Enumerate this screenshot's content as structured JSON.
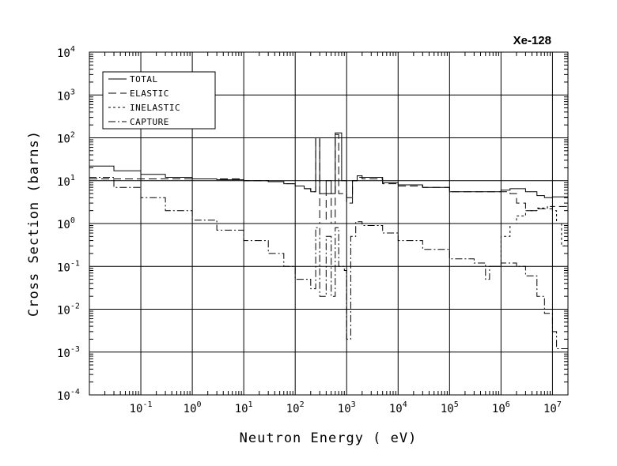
{
  "chart_data": {
    "type": "line",
    "title": "Xe-128",
    "xlabel": "Neutron Energy ( eV)",
    "ylabel": "Cross Section (barns)",
    "x_scale": "log",
    "y_scale": "log",
    "xlim": [
      0.01,
      20000000
    ],
    "ylim": [
      0.0001,
      10000
    ],
    "grid": true,
    "legend_position": "top-left",
    "x_tick_labels": [
      {
        "value": 0.1,
        "base": "10",
        "exp": "-1"
      },
      {
        "value": 1,
        "base": "10",
        "exp": "0"
      },
      {
        "value": 10,
        "base": "10",
        "exp": "1"
      },
      {
        "value": 100,
        "base": "10",
        "exp": "2"
      },
      {
        "value": 1000,
        "base": "10",
        "exp": "3"
      },
      {
        "value": 10000,
        "base": "10",
        "exp": "4"
      },
      {
        "value": 100000,
        "base": "10",
        "exp": "5"
      },
      {
        "value": 1000000,
        "base": "10",
        "exp": "6"
      },
      {
        "value": 10000000,
        "base": "10",
        "exp": "7"
      }
    ],
    "y_tick_labels": [
      {
        "value": 10000,
        "base": "10",
        "exp": "4"
      },
      {
        "value": 1000,
        "base": "10",
        "exp": "3"
      },
      {
        "value": 100,
        "base": "10",
        "exp": "2"
      },
      {
        "value": 10,
        "base": "10",
        "exp": "1"
      },
      {
        "value": 1,
        "base": "10",
        "exp": "0"
      },
      {
        "value": 0.1,
        "base": "10",
        "exp": "-1"
      },
      {
        "value": 0.01,
        "base": "10",
        "exp": "-2"
      },
      {
        "value": 0.001,
        "base": "10",
        "exp": "-3"
      },
      {
        "value": 0.0001,
        "base": "10",
        "exp": "-4"
      }
    ],
    "series": [
      {
        "name": "TOTAL",
        "dash": "solid",
        "points": [
          [
            0.01,
            22
          ],
          [
            0.03,
            17
          ],
          [
            0.1,
            14
          ],
          [
            0.3,
            12
          ],
          [
            1,
            11
          ],
          [
            3,
            10.5
          ],
          [
            10,
            10
          ],
          [
            30,
            9.5
          ],
          [
            60,
            8.5
          ],
          [
            100,
            7.5
          ],
          [
            150,
            6.5
          ],
          [
            200,
            5.5
          ],
          [
            250,
            100
          ],
          [
            300,
            5
          ],
          [
            400,
            10
          ],
          [
            500,
            5
          ],
          [
            600,
            130
          ],
          [
            800,
            10
          ],
          [
            1000,
            4
          ],
          [
            1300,
            10
          ],
          [
            1600,
            13
          ],
          [
            2000,
            12
          ],
          [
            5000,
            9
          ],
          [
            10000,
            8
          ],
          [
            30000,
            7
          ],
          [
            100000,
            5.5
          ],
          [
            300000,
            5.5
          ],
          [
            1000000,
            6
          ],
          [
            1500000,
            6.5
          ],
          [
            3000000,
            5.5
          ],
          [
            5000000,
            4.5
          ],
          [
            7000000,
            4
          ],
          [
            10000000,
            4.2
          ],
          [
            20000000,
            5
          ]
        ]
      },
      {
        "name": "ELASTIC",
        "dash": "long-dash",
        "points": [
          [
            0.01,
            11
          ],
          [
            1,
            11
          ],
          [
            10,
            10
          ],
          [
            30,
            9.5
          ],
          [
            60,
            8.5
          ],
          [
            100,
            7.5
          ],
          [
            150,
            6.5
          ],
          [
            200,
            5.5
          ],
          [
            250,
            95
          ],
          [
            300,
            1
          ],
          [
            400,
            5
          ],
          [
            500,
            1
          ],
          [
            600,
            120
          ],
          [
            700,
            5
          ],
          [
            800,
            5
          ],
          [
            1000,
            3
          ],
          [
            1300,
            10
          ],
          [
            1600,
            12
          ],
          [
            2000,
            11
          ],
          [
            5000,
            8.5
          ],
          [
            10000,
            7.5
          ],
          [
            30000,
            7
          ],
          [
            100000,
            5.5
          ],
          [
            300000,
            5.5
          ],
          [
            1000000,
            5.5
          ],
          [
            1500000,
            5
          ],
          [
            2000000,
            3
          ],
          [
            3000000,
            2
          ],
          [
            5000000,
            2.2
          ],
          [
            10000000,
            2.5
          ],
          [
            20000000,
            3
          ]
        ]
      },
      {
        "name": "INELASTIC",
        "dash": "short-dash",
        "points": [
          [
            800000,
            0.1
          ],
          [
            1000000,
            0.5
          ],
          [
            1500000,
            1
          ],
          [
            2000000,
            1.5
          ],
          [
            3000000,
            2
          ],
          [
            5000000,
            2.3
          ],
          [
            8000000,
            2.5
          ],
          [
            10000000,
            2
          ],
          [
            12000000,
            1
          ],
          [
            15000000,
            0.3
          ],
          [
            20000000,
            0.1
          ]
        ]
      },
      {
        "name": "CAPTURE",
        "dash": "dash-dot",
        "points": [
          [
            0.01,
            12
          ],
          [
            0.03,
            7
          ],
          [
            0.1,
            4
          ],
          [
            0.3,
            2
          ],
          [
            1,
            1.2
          ],
          [
            3,
            0.7
          ],
          [
            10,
            0.4
          ],
          [
            30,
            0.2
          ],
          [
            60,
            0.1
          ],
          [
            100,
            0.05
          ],
          [
            200,
            0.03
          ],
          [
            250,
            0.8
          ],
          [
            300,
            0.02
          ],
          [
            400,
            0.5
          ],
          [
            500,
            0.02
          ],
          [
            600,
            0.8
          ],
          [
            700,
            0.1
          ],
          [
            900,
            0.08
          ],
          [
            1000,
            0.002
          ],
          [
            1200,
            0.5
          ],
          [
            1500,
            1.1
          ],
          [
            2000,
            0.9
          ],
          [
            5000,
            0.6
          ],
          [
            10000,
            0.4
          ],
          [
            30000,
            0.25
          ],
          [
            100000,
            0.15
          ],
          [
            300000,
            0.12
          ],
          [
            500000,
            0.05
          ],
          [
            600000,
            0.1
          ],
          [
            1000000,
            0.12
          ],
          [
            2000000,
            0.1
          ],
          [
            3000000,
            0.06
          ],
          [
            5000000,
            0.02
          ],
          [
            7000000,
            0.008
          ],
          [
            10000000,
            0.003
          ],
          [
            12000000,
            0.0012
          ],
          [
            20000000,
            0.001
          ]
        ]
      }
    ]
  }
}
